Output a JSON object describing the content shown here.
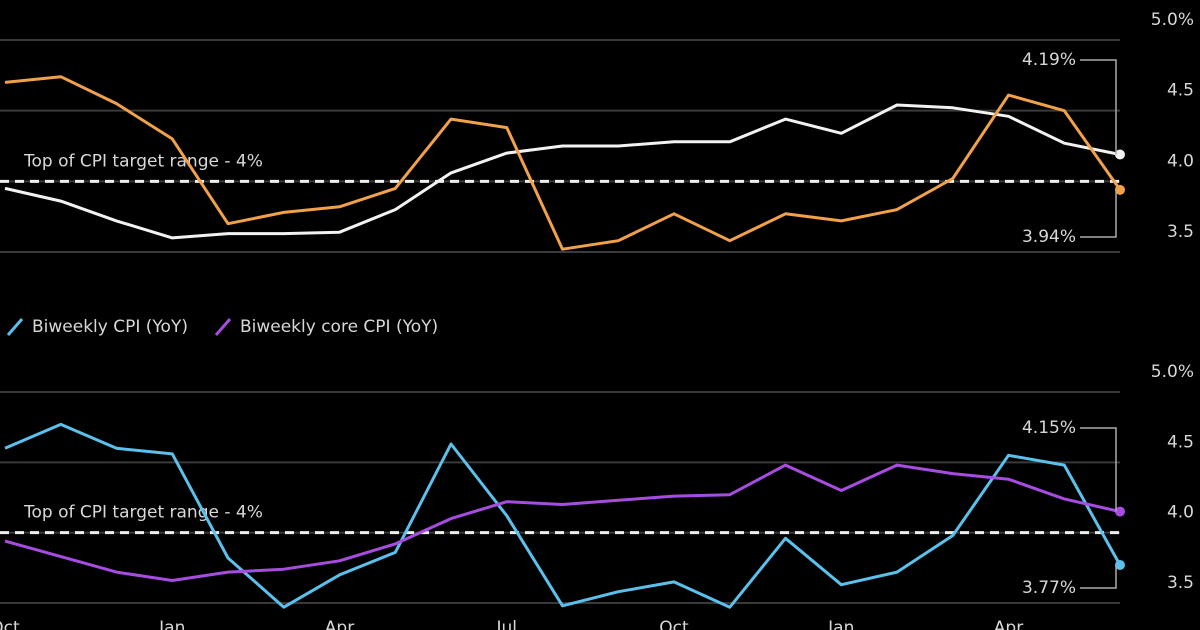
{
  "chart_data": [
    {
      "type": "line",
      "categories": [
        "Oct",
        null,
        null,
        "Jan",
        null,
        null,
        "Apr",
        null,
        null,
        "Jul",
        null,
        null,
        "Oct",
        null,
        null,
        "Jan",
        null,
        null,
        "Apr",
        null,
        null
      ],
      "series": [
        {
          "color": "#f2f2f2",
          "values": [
            3.95,
            3.86,
            3.72,
            3.6,
            3.63,
            3.63,
            3.64,
            3.8,
            4.06,
            4.2,
            4.25,
            4.25,
            4.28,
            4.28,
            4.44,
            4.34,
            4.54,
            4.52,
            4.46,
            4.27,
            4.19
          ],
          "value_labels": [
            null,
            null,
            null,
            null,
            null,
            null,
            null,
            null,
            null,
            null,
            null,
            null,
            null,
            null,
            null,
            null,
            null,
            null,
            null,
            null,
            "4.19%"
          ]
        },
        {
          "color": "#f0a14a",
          "values": [
            4.7,
            4.74,
            4.55,
            4.3,
            3.7,
            3.78,
            3.82,
            3.95,
            4.44,
            4.38,
            3.52,
            3.58,
            3.77,
            3.58,
            3.77,
            3.72,
            3.8,
            4.02,
            4.61,
            4.5,
            3.94
          ],
          "value_labels": [
            null,
            null,
            null,
            null,
            null,
            null,
            null,
            null,
            null,
            null,
            null,
            null,
            null,
            null,
            null,
            null,
            null,
            null,
            null,
            null,
            "3.94%"
          ]
        }
      ],
      "ylim": [
        3.5,
        5.0
      ],
      "yticks": [
        3.5,
        {
          "value": 4,
          "label": "4.0"
        },
        4.5,
        {
          "value": 5,
          "label": "5.0%"
        }
      ],
      "grid": true,
      "reference_line": {
        "value": 4,
        "label": "Top of CPI target range - 4%"
      }
    },
    {
      "type": "line",
      "categories": [
        "Oct",
        null,
        null,
        "Jan",
        null,
        null,
        "Apr",
        null,
        null,
        "Jul",
        null,
        null,
        "Oct",
        null,
        null,
        "Jan",
        null,
        null,
        "Apr",
        null,
        null
      ],
      "series": [
        {
          "name": "Biweekly CPI (YoY)",
          "color": "#5bc0eb",
          "values": [
            4.6,
            4.77,
            4.6,
            4.56,
            3.82,
            3.47,
            3.7,
            3.86,
            4.63,
            4.12,
            3.48,
            3.58,
            3.65,
            3.47,
            3.96,
            3.63,
            3.72,
            3.98,
            4.55,
            4.48,
            3.77
          ],
          "value_labels": [
            null,
            null,
            null,
            null,
            null,
            null,
            null,
            null,
            null,
            null,
            null,
            null,
            null,
            null,
            null,
            null,
            null,
            null,
            null,
            null,
            "3.77%"
          ]
        },
        {
          "name": "Biweekly core CPI (YoY)",
          "color": "#a64ce0",
          "values": [
            3.94,
            3.83,
            3.72,
            3.66,
            3.72,
            3.74,
            3.8,
            3.92,
            4.1,
            4.22,
            4.2,
            4.23,
            4.26,
            4.27,
            4.48,
            4.3,
            4.48,
            4.42,
            4.38,
            4.24,
            4.15
          ],
          "value_labels": [
            null,
            null,
            null,
            null,
            null,
            null,
            null,
            null,
            null,
            null,
            null,
            null,
            null,
            null,
            null,
            null,
            null,
            null,
            null,
            null,
            "4.15%"
          ]
        }
      ],
      "ylim": [
        3.5,
        5.0
      ],
      "yticks": [
        3.5,
        {
          "value": 4,
          "label": "4.0"
        },
        4.5,
        {
          "value": 5,
          "label": "5.0%"
        }
      ],
      "grid": true,
      "reference_line": {
        "value": 4,
        "label": "Top of CPI target range - 4%"
      }
    }
  ]
}
